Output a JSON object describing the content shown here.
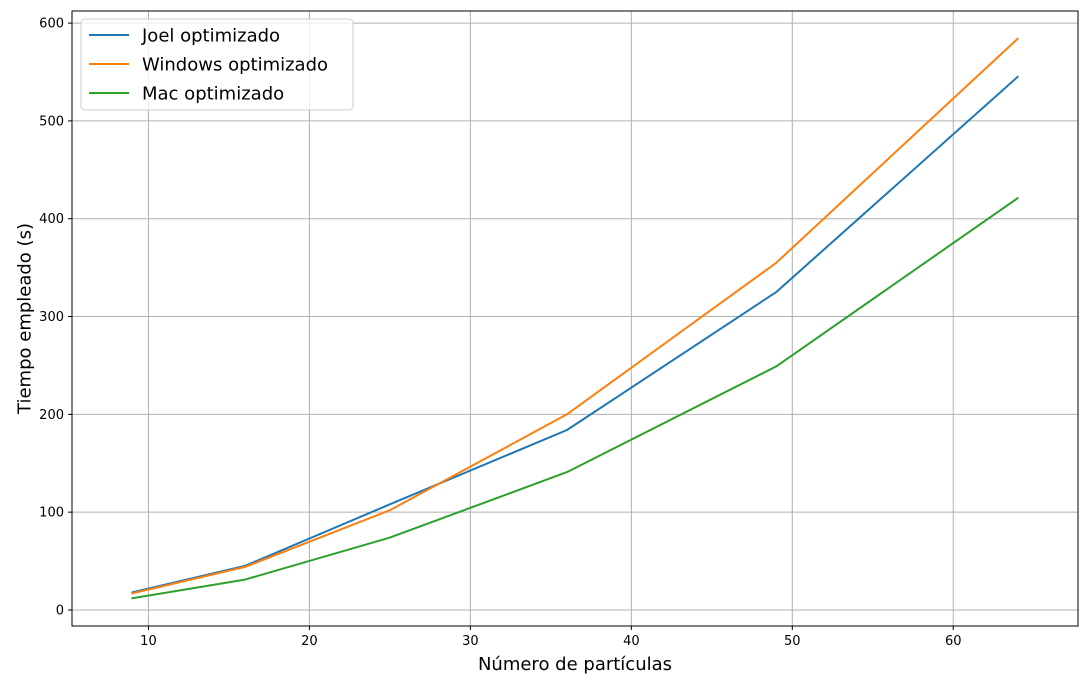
{
  "chart_data": {
    "type": "line",
    "title": "",
    "xlabel": "Número de partículas",
    "ylabel": "Tiempo empleado (s)",
    "x": [
      9,
      16,
      25,
      36,
      49,
      64
    ],
    "series": [
      {
        "name": "Joel optimizado",
        "color": "#1f77b4",
        "values": [
          18,
          45,
          108,
          184,
          325,
          545
        ]
      },
      {
        "name": "Windows optimizado",
        "color": "#ff7f0e",
        "values": [
          17,
          44,
          102,
          200,
          355,
          584
        ]
      },
      {
        "name": "Mac optimizado",
        "color": "#2ca02c",
        "values": [
          12,
          31,
          74,
          141,
          249,
          421
        ]
      }
    ],
    "xlim": [
      5.25,
      67.75
    ],
    "ylim": [
      -16.4,
      612.4
    ],
    "xticks": [
      "10",
      "20",
      "30",
      "40",
      "50",
      "60"
    ],
    "yticks": [
      "0",
      "100",
      "200",
      "300",
      "400",
      "500",
      "600"
    ],
    "grid": true,
    "legend_position": "top-left"
  }
}
